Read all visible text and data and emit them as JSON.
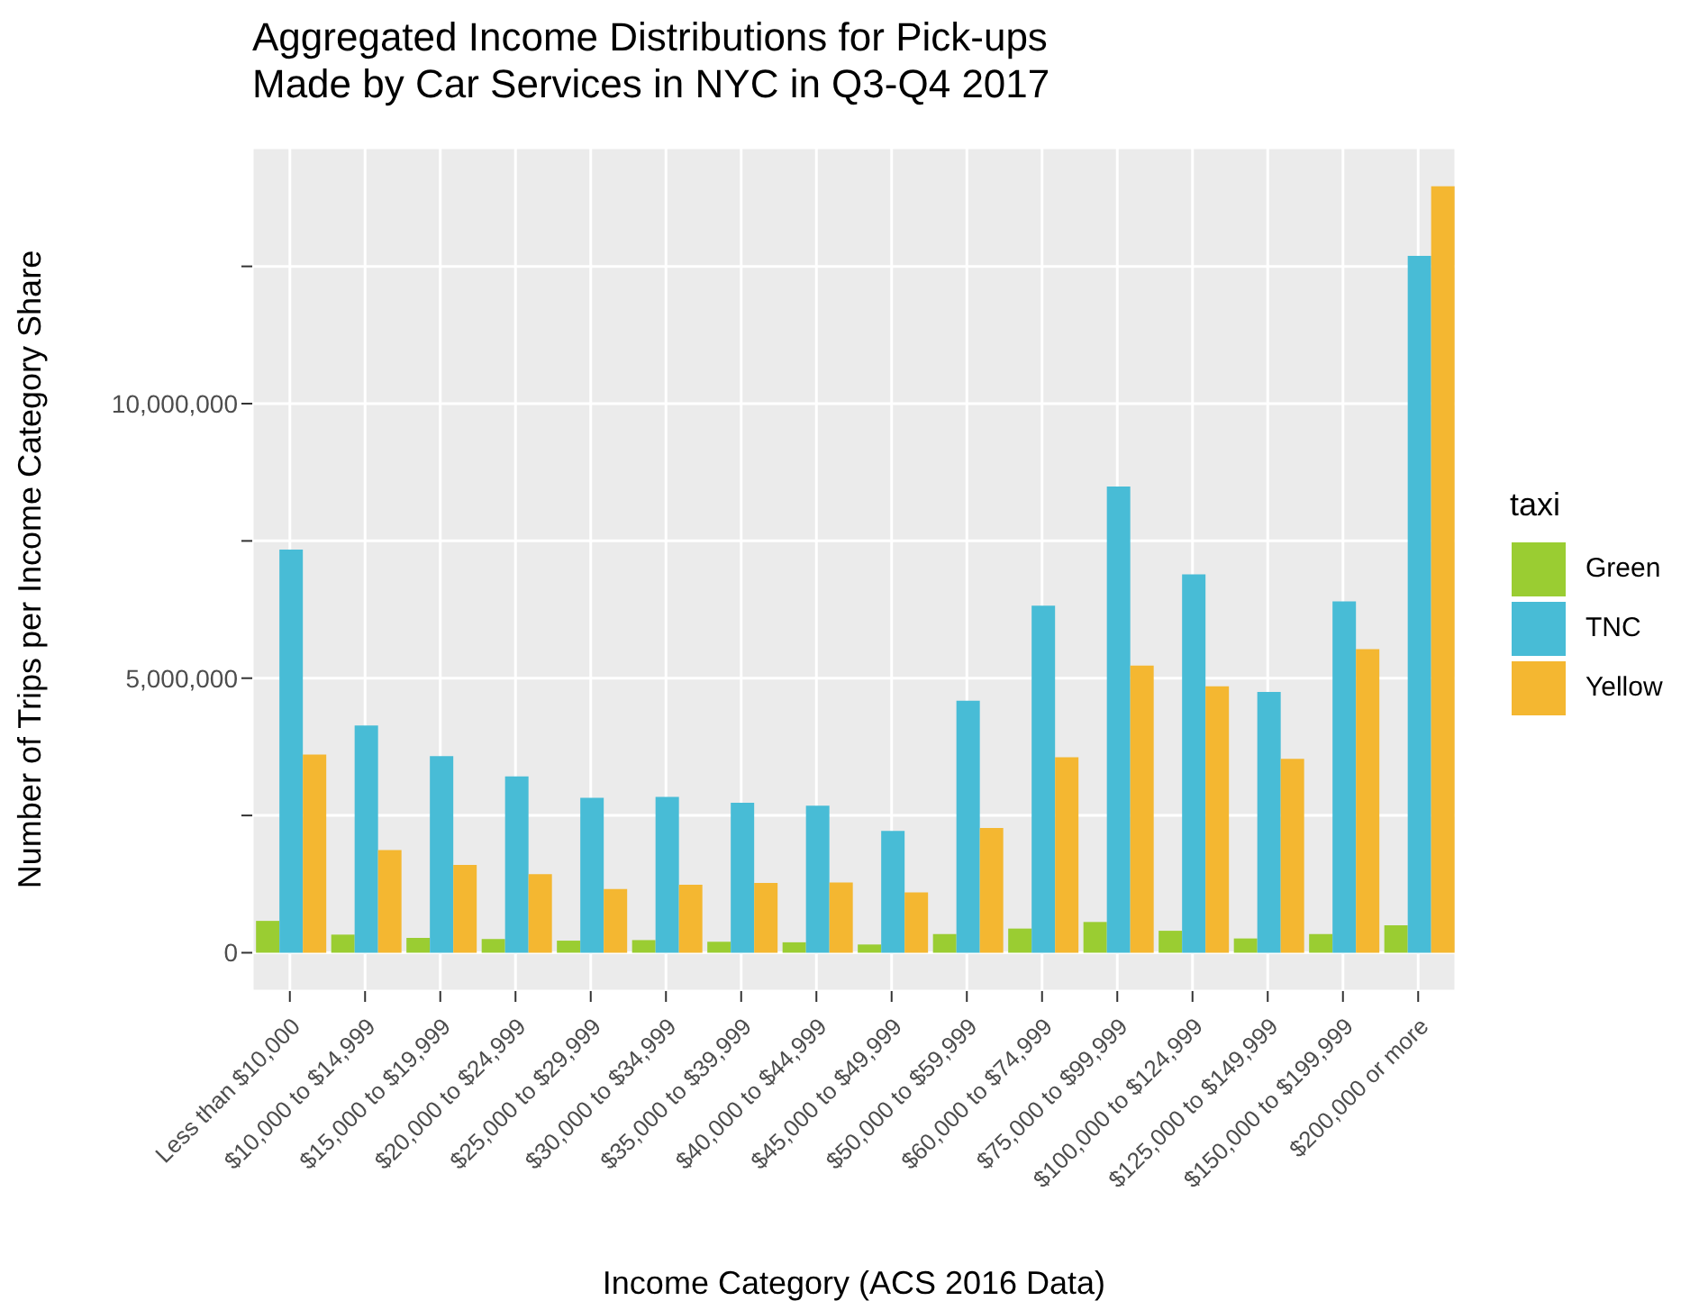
{
  "chart_data": {
    "type": "bar",
    "title": "Aggregated Income Distributions for Pick-ups\nMade by Car Services in NYC in Q3-Q4 2017",
    "xlabel": "Income Category (ACS 2016 Data)",
    "ylabel": "Number of Trips per Income Category Share",
    "legend_title": "taxi",
    "legend": "right",
    "grid": true,
    "categories": [
      "Less than $10,000",
      "$10,000 to $14,999",
      "$15,000 to $19,999",
      "$20,000 to $24,999",
      "$25,000 to $29,999",
      "$30,000 to $34,999",
      "$35,000 to $39,999",
      "$40,000 to $44,999",
      "$45,000 to $49,999",
      "$50,000 to $59,999",
      "$60,000 to $74,999",
      "$75,000 to $99,999",
      "$100,000 to $124,999",
      "$125,000 to $149,999",
      "$150,000 to $199,999",
      "$200,000 or more"
    ],
    "series": [
      {
        "name": "Green",
        "color": "#9acd32",
        "values": [
          580000,
          330000,
          270000,
          250000,
          220000,
          230000,
          200000,
          190000,
          150000,
          340000,
          440000,
          560000,
          400000,
          260000,
          340000,
          500000
        ]
      },
      {
        "name": "TNC",
        "color": "#48bcd6",
        "values": [
          7340000,
          4140000,
          3580000,
          3210000,
          2820000,
          2840000,
          2730000,
          2680000,
          2220000,
          4590000,
          6320000,
          8490000,
          6890000,
          4750000,
          6400000,
          12690000
        ]
      },
      {
        "name": "Yellow",
        "color": "#f4b731",
        "values": [
          3610000,
          1870000,
          1600000,
          1430000,
          1160000,
          1240000,
          1270000,
          1280000,
          1100000,
          2270000,
          3560000,
          5230000,
          4850000,
          3530000,
          5530000,
          13960000
        ]
      }
    ],
    "ylim": [
      -698000,
      14660000
    ],
    "yticks": [
      0,
      {
        "value": 2500000,
        "label": null
      },
      {
        "value": 5000000,
        "label": "5,000,000"
      },
      {
        "value": 7500000,
        "label": null
      },
      {
        "value": 10000000,
        "label": "10,000,000"
      },
      {
        "value": 12500000,
        "label": null
      }
    ]
  }
}
